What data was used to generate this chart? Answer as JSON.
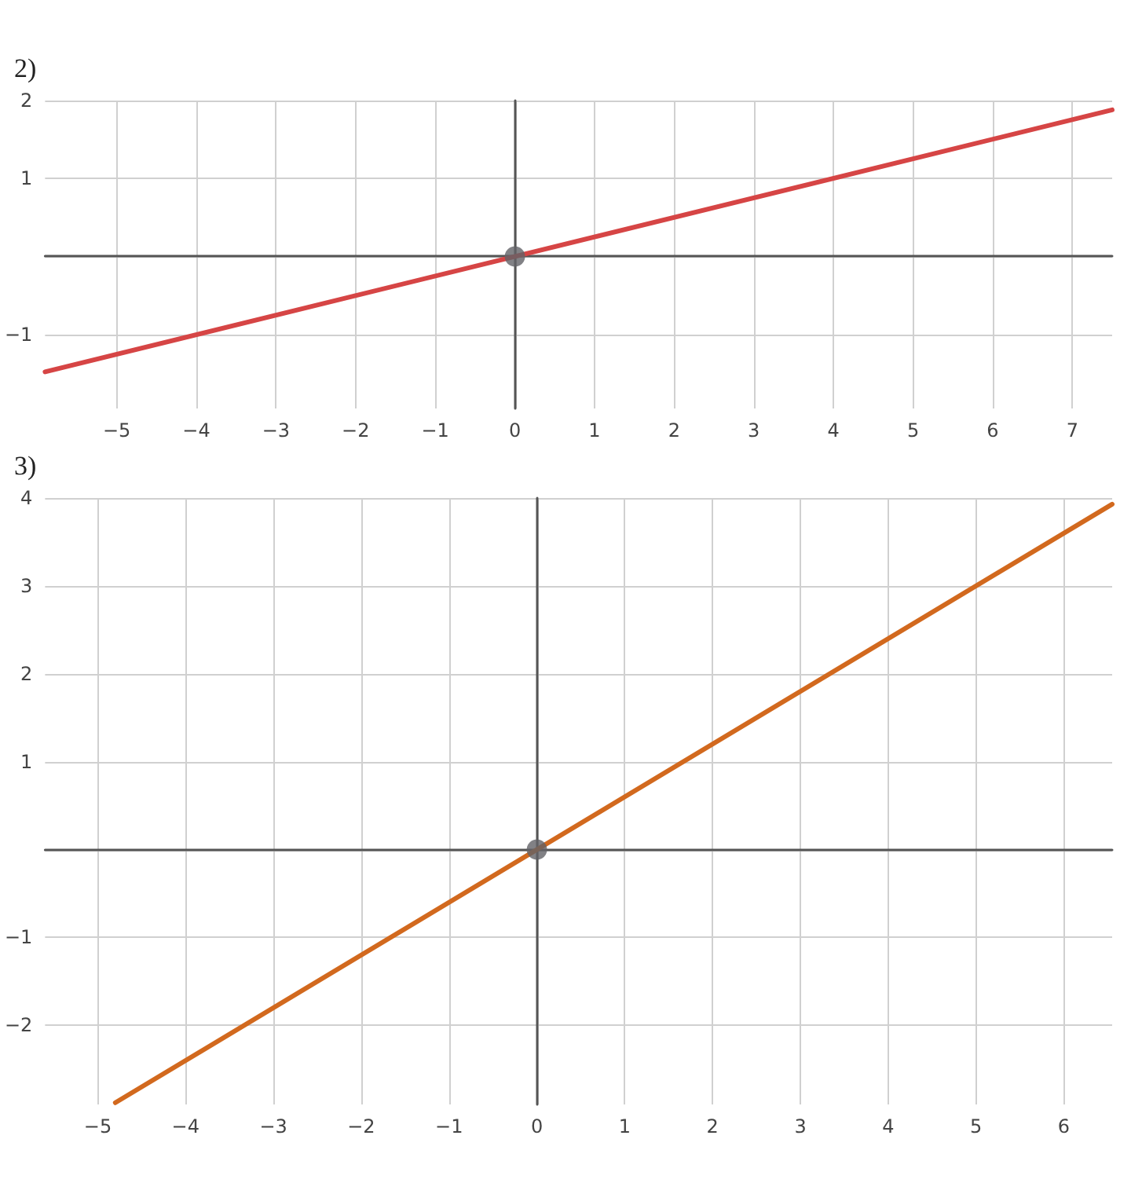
{
  "chart_data": [
    {
      "type": "line",
      "title": "2)",
      "grid": true,
      "xlim": [
        -5.9,
        7.5
      ],
      "ylim": [
        -1.95,
        2
      ],
      "xticks": [
        -5,
        -4,
        -3,
        -2,
        -1,
        0,
        1,
        2,
        3,
        4,
        5,
        6,
        7
      ],
      "yticks": [
        -1,
        {
          "value": 0,
          "label": null
        },
        1,
        2
      ],
      "series": [
        {
          "color": "#d64545",
          "marker": "none",
          "x": [
            -5.9,
            7.5
          ],
          "values": [
            -1.48,
            1.88
          ]
        },
        {
          "type": "scatter",
          "color": "#616166",
          "marker": "circle",
          "x": [
            0
          ],
          "values": [
            0
          ]
        }
      ]
    },
    {
      "type": "line",
      "title": "3)",
      "grid": true,
      "xlim": [
        -5.6,
        6.55
      ],
      "ylim": [
        -2.9,
        4
      ],
      "xticks": [
        -5,
        -4,
        -3,
        -2,
        -1,
        0,
        1,
        2,
        3,
        4,
        5,
        6
      ],
      "yticks": [
        -2,
        -1,
        {
          "value": 0,
          "label": null
        },
        1,
        2,
        3,
        4
      ],
      "series": [
        {
          "color": "#d2691e",
          "marker": "none",
          "x": [
            -4.8,
            6.55
          ],
          "values": [
            -2.88,
            3.93
          ]
        },
        {
          "type": "scatter",
          "color": "#616166",
          "marker": "circle",
          "x": [
            0
          ],
          "values": [
            0
          ]
        }
      ]
    }
  ]
}
